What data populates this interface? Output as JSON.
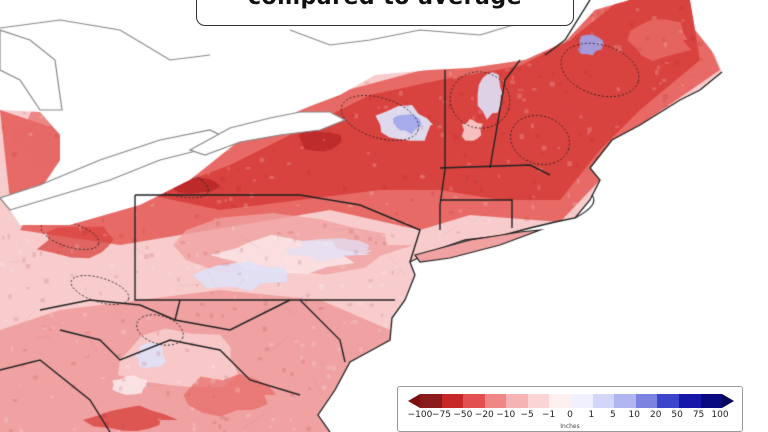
{
  "title": "compared to average",
  "legend": {
    "unit": "Inches",
    "ticks": [
      "−100",
      "−75",
      "−50",
      "−20",
      "−10",
      "−5",
      "−1",
      "0",
      "1",
      "5",
      "10",
      "20",
      "50",
      "75",
      "100"
    ],
    "colors": [
      "#8b1a1a",
      "#c62828",
      "#e35050",
      "#ef8787",
      "#f5b3b3",
      "#fad5d5",
      "#fff0f0",
      "#f0f0ff",
      "#d3d6f7",
      "#b0b5ef",
      "#7c82e0",
      "#3d44cc",
      "#1616a8",
      "#0a0a80"
    ],
    "under_color": "#7a1010",
    "over_color": "#06065a"
  },
  "colors": {
    "land_strong_red": "#d9433f",
    "land_red": "#e76a66",
    "land_mid": "#f0a1a1",
    "land_light": "#f8cccc",
    "near_zero": "#fbe8ea",
    "blue_light": "#dfe1f7",
    "blue_mid": "#9ea5ea",
    "water": "#ffffff"
  }
}
